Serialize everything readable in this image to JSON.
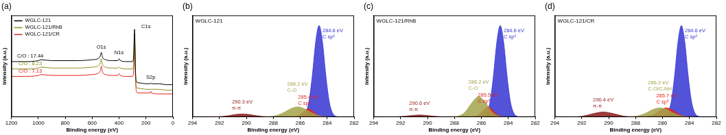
{
  "chart_data": [
    {
      "type": "line",
      "title": "(a)",
      "x_label": "Binding energy (eV)",
      "y_label": "Intensity (a.u.)",
      "x": [
        1200,
        1100,
        1000,
        980,
        900,
        800,
        700,
        600,
        560,
        540,
        532,
        524,
        500,
        450,
        410,
        400,
        390,
        350,
        300,
        292,
        285,
        278,
        270,
        250,
        200,
        170,
        165,
        160,
        100,
        50,
        0
      ],
      "series": [
        {
          "name": "WGLC-121",
          "color": "#000000",
          "values": [
            60,
            60,
            61,
            62,
            61,
            61,
            61,
            62,
            63,
            66,
            70,
            65,
            62,
            61,
            61,
            63,
            61,
            60,
            60,
            66,
            95,
            50,
            38,
            37,
            36,
            36,
            37,
            36,
            36,
            35,
            35
          ]
        },
        {
          "name": "WGLC-121/RhB",
          "color": "#8c8c1e",
          "values": [
            52,
            52,
            53,
            54,
            53,
            53,
            53,
            54,
            55,
            58,
            63,
            57,
            54,
            53,
            53,
            54,
            53,
            52,
            52,
            58,
            91,
            46,
            32,
            31,
            30,
            30,
            30,
            30,
            30,
            29,
            29
          ]
        },
        {
          "name": "WGLC-121/CR",
          "color": "#e0201b",
          "values": [
            44,
            44,
            45,
            46,
            45,
            45,
            45,
            46,
            47,
            50,
            55,
            49,
            46,
            45,
            45,
            47,
            45,
            44,
            44,
            50,
            88,
            42,
            27,
            26,
            26,
            26,
            28,
            26,
            25,
            25,
            25
          ]
        }
      ],
      "xlim": [
        1200,
        0
      ],
      "xticks": [
        1200,
        1000,
        800,
        600,
        400,
        200,
        0
      ],
      "ylim": [
        0,
        110
      ],
      "tick_labels": "x",
      "grid": false,
      "legend": "upper left",
      "annotations": [
        {
          "text": "C/O : 17.44",
          "x": 1060,
          "y": 63,
          "color": "#000000"
        },
        {
          "text": "C/O : 6.23",
          "x": 1060,
          "y": 55,
          "color": "#8c8c1e"
        },
        {
          "text": "C/O : 7.13",
          "x": 1060,
          "y": 47,
          "color": "#e0201b"
        },
        {
          "text": "O1s",
          "x": 532,
          "y": 73,
          "color": "#000000"
        },
        {
          "text": "N1s",
          "x": 400,
          "y": 67,
          "color": "#000000"
        },
        {
          "text": "C1s",
          "x": 200,
          "y": 95,
          "color": "#000000"
        },
        {
          "text": "S2p",
          "x": 165,
          "y": 40,
          "color": "#000000"
        }
      ]
    },
    {
      "type": "area",
      "title": "(b)",
      "subtitle": "WGLC-121",
      "x_label": "Binding energy (eV)",
      "y_label": "Intensity (a.u.)",
      "series": [
        {
          "name": "C sp²",
          "peak_label": "284.6 eV",
          "color": "#3535d4",
          "x": [
            283.1,
            283.35,
            283.6,
            283.85,
            284.1,
            284.35,
            284.6,
            284.85,
            285.1,
            285.35,
            285.6,
            285.85,
            286.1
          ],
          "values": [
            0.1,
            0.7,
            4.0,
            15.5,
            41.2,
            74.1,
            90,
            74.1,
            41.2,
            15.5,
            4.0,
            0.7,
            0.1
          ]
        },
        {
          "name": "C sp³",
          "peak_label": "285.4 eV",
          "color": "#e3211c",
          "x": [
            283.9,
            284.15,
            284.4,
            284.65,
            284.9,
            285.15,
            285.4,
            285.65,
            285.9,
            286.15,
            286.4,
            286.65,
            286.9
          ],
          "values": [
            0,
            0.1,
            0.4,
            1.4,
            3.7,
            6.6,
            8,
            6.6,
            3.7,
            1.4,
            0.4,
            0.1,
            0
          ]
        },
        {
          "name": "C-O",
          "peak_label": "286.2 eV",
          "color": "#a3a34a",
          "x": [
            283.7,
            284.2,
            284.7,
            285.2,
            285.7,
            286.2,
            286.7,
            287.2,
            287.7,
            288.2,
            288.7
          ],
          "values": [
            0.1,
            0.4,
            1.7,
            4.6,
            8.2,
            10,
            8.2,
            4.6,
            1.7,
            0.4,
            0.1
          ]
        },
        {
          "name": "π-π",
          "peak_label": "290.3 eV",
          "color": "#8b1c1c",
          "x": [
            287.8,
            288.3,
            288.8,
            289.3,
            289.8,
            290.3,
            290.8,
            291.3,
            291.8,
            292.3,
            292.8
          ],
          "values": [
            0,
            0.1,
            0.5,
            1.4,
            2.5,
            3,
            2.5,
            1.4,
            0.5,
            0.1,
            0
          ]
        }
      ],
      "xlim": [
        294,
        282
      ],
      "xticks": [
        294,
        292,
        290,
        288,
        286,
        284,
        282
      ],
      "ylim": [
        0,
        100
      ],
      "tick_labels": "x",
      "grid": false
    },
    {
      "type": "area",
      "title": "(c)",
      "subtitle": "WGLC-121/RhB",
      "x_label": "Binding energy (eV)",
      "y_label": "Intensity (a.u.)",
      "series": [
        {
          "name": "C sp²",
          "peak_label": "284.6 eV",
          "color": "#3535d4",
          "x": [
            283.1,
            283.35,
            283.6,
            283.85,
            284.1,
            284.35,
            284.6,
            284.85,
            285.1,
            285.35,
            285.6,
            285.85,
            286.1
          ],
          "values": [
            0.1,
            0.7,
            4.0,
            15.5,
            41.2,
            74.1,
            90,
            74.1,
            41.2,
            15.5,
            4.0,
            0.7,
            0.1
          ]
        },
        {
          "name": "C sp³",
          "peak_label": "285.5 eV",
          "color": "#e3211c",
          "x": [
            284,
            284.25,
            284.5,
            284.75,
            285,
            285.25,
            285.5,
            285.75,
            286,
            286.25,
            286.5,
            286.75,
            287
          ],
          "values": [
            0,
            0.1,
            0.4,
            1.7,
            4.6,
            8.2,
            10,
            8.2,
            4.6,
            1.7,
            0.4,
            0.1,
            0
          ]
        },
        {
          "name": "C-O",
          "peak_label": "286.2 eV",
          "color": "#a3a34a",
          "x": [
            284.2,
            284.7,
            285.2,
            285.7,
            286.2,
            286.7,
            287.2,
            287.7,
            288.2
          ],
          "values": [
            0.1,
            0.9,
            5,
            14.1,
            20,
            14.1,
            5,
            0.9,
            0.1
          ]
        },
        {
          "name": "π-π",
          "peak_label": "290.6 eV",
          "color": "#8b1c1c",
          "x": [
            288.1,
            288.6,
            289.1,
            289.6,
            290.1,
            290.6,
            291.1,
            291.6,
            292.1,
            292.6,
            293.1
          ],
          "values": [
            0,
            0.1,
            0.3,
            0.9,
            1.6,
            2,
            1.6,
            0.9,
            0.3,
            0.1,
            0
          ]
        }
      ],
      "xlim": [
        294,
        282
      ],
      "xticks": [
        294,
        292,
        290,
        288,
        286,
        284,
        282
      ],
      "ylim": [
        0,
        100
      ],
      "tick_labels": "x",
      "grid": false
    },
    {
      "type": "area",
      "title": "(d)",
      "subtitle": "WGLC-121/CR",
      "x_label": "Binding energy (eV)",
      "y_label": "Intensity (a.u.)",
      "series": [
        {
          "name": "C sp²",
          "peak_label": "284.6 eV",
          "color": "#3535d4",
          "x": [
            283.1,
            283.35,
            283.6,
            283.85,
            284.1,
            284.35,
            284.6,
            284.85,
            285.1,
            285.35,
            285.6,
            285.85,
            286.1
          ],
          "values": [
            0.1,
            0.7,
            4.0,
            15.5,
            41.2,
            74.1,
            90,
            74.1,
            41.2,
            15.5,
            4.0,
            0.7,
            0.1
          ]
        },
        {
          "name": "C sp³",
          "peak_label": "285.7 eV",
          "color": "#e3211c",
          "x": [
            283.7,
            284.2,
            284.7,
            285.2,
            285.7,
            286.2,
            286.7,
            287.2,
            287.7
          ],
          "values": [
            0,
            0.4,
            2.2,
            6.4,
            9,
            6.4,
            2.2,
            0.4,
            0
          ]
        },
        {
          "name": "C-O/C-NH",
          "peak_label": "286.2 eV",
          "color": "#a3a34a",
          "x": [
            283.7,
            284.2,
            284.7,
            285.2,
            285.7,
            286.2,
            286.7,
            287.2,
            287.7,
            288.2,
            288.7
          ],
          "values": [
            0.1,
            0.4,
            1.5,
            4.1,
            7.4,
            9,
            7.4,
            4.1,
            1.5,
            0.4,
            0.1
          ]
        },
        {
          "name": "π-π",
          "peak_label": "290.4 eV",
          "color": "#8b1c1c",
          "x": [
            287.9,
            288.4,
            288.9,
            289.4,
            289.9,
            290.4,
            290.9,
            291.4,
            291.9,
            292.4,
            292.9
          ],
          "values": [
            0,
            0.2,
            0.9,
            2.5,
            4.1,
            5,
            4.1,
            2.5,
            0.9,
            0.2,
            0
          ]
        }
      ],
      "xlim": [
        294,
        282
      ],
      "xticks": [
        294,
        292,
        290,
        288,
        286,
        284,
        282
      ],
      "ylim": [
        0,
        100
      ],
      "tick_labels": "x",
      "grid": false
    }
  ]
}
